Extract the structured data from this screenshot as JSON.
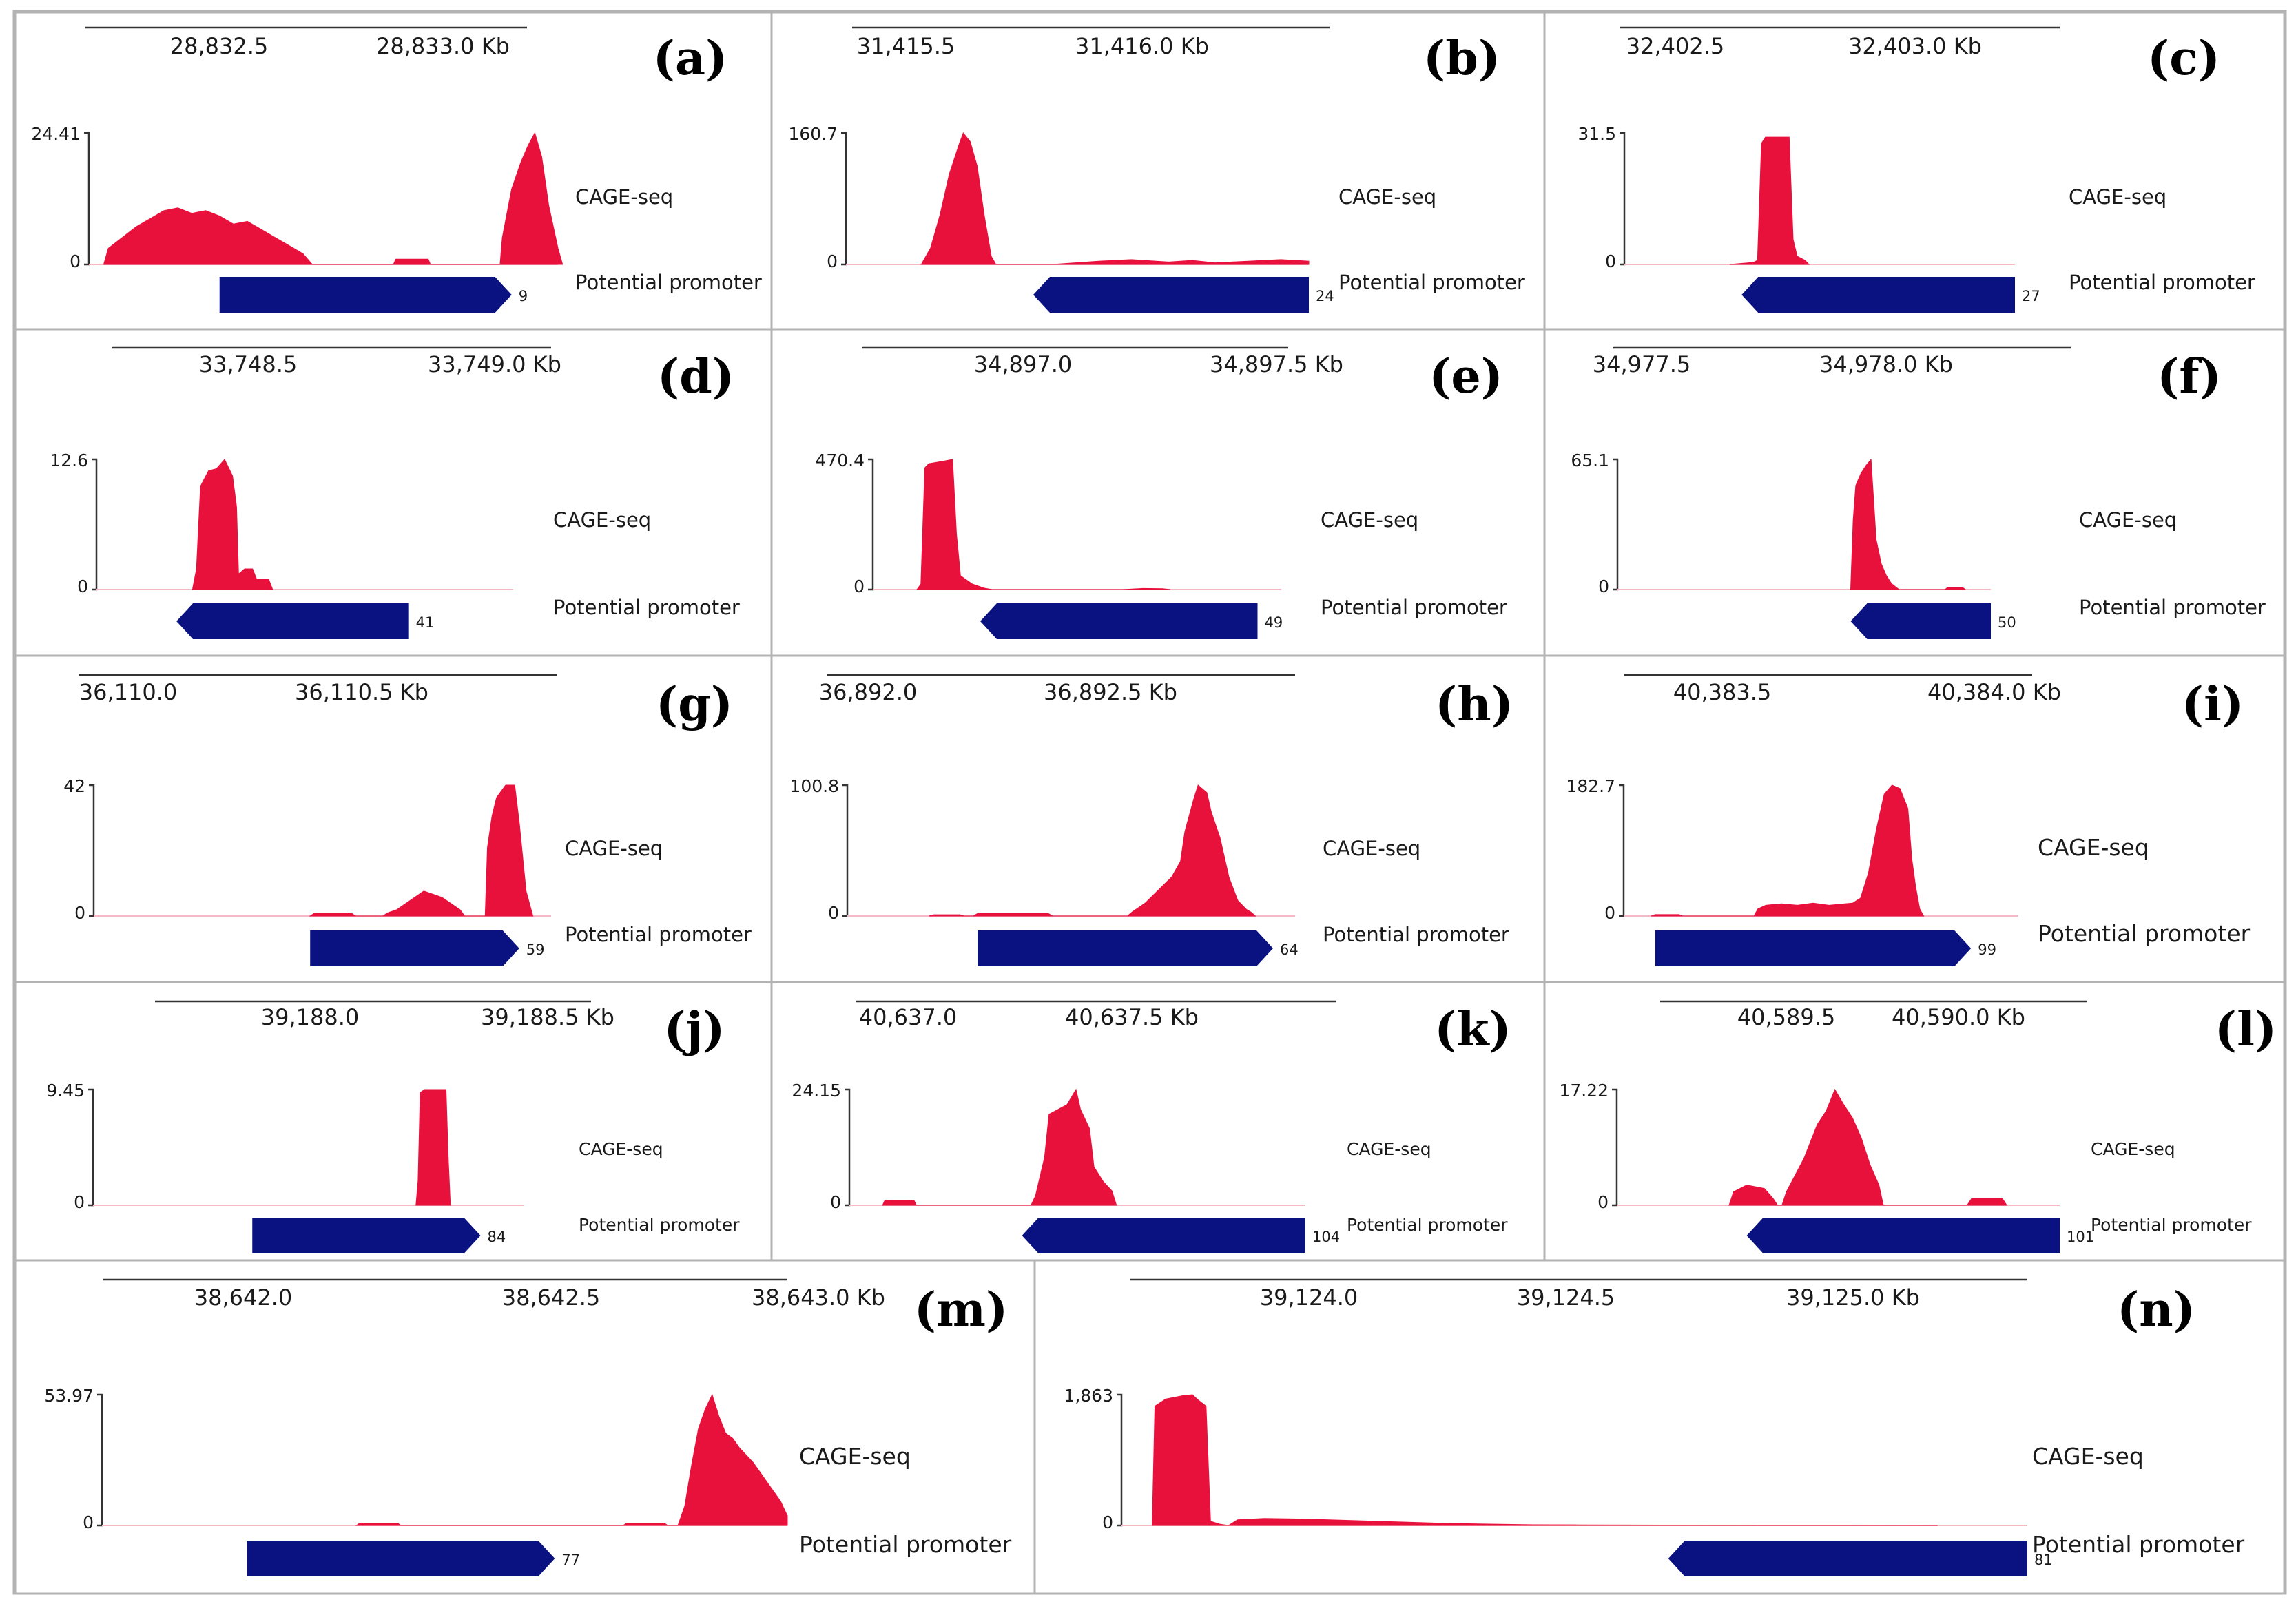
{
  "figure": {
    "track_label": "CAGE-seq",
    "promoter_label": "Potential promoter",
    "axis_unit": "Kb",
    "colors": {
      "signal": "#e8113c",
      "promoter": "#0a1180",
      "axis": "#333333",
      "border": "#b3b3b3"
    }
  },
  "chart_data": [
    {
      "type": "area",
      "panel": "(a)",
      "ticks": [
        "28,832.5",
        "28,833.0 Kb"
      ],
      "ymax_label": "24.41",
      "ymin_label": "0",
      "ylim": [
        0,
        24.41
      ],
      "signal": [
        [
          0.02,
          0
        ],
        [
          0.03,
          3
        ],
        [
          0.06,
          5
        ],
        [
          0.09,
          7
        ],
        [
          0.12,
          8.5
        ],
        [
          0.15,
          10
        ],
        [
          0.18,
          10.5
        ],
        [
          0.21,
          9.5
        ],
        [
          0.24,
          10
        ],
        [
          0.27,
          9
        ],
        [
          0.3,
          7.5
        ],
        [
          0.33,
          8
        ],
        [
          0.36,
          6.5
        ],
        [
          0.39,
          5
        ],
        [
          0.42,
          3.5
        ],
        [
          0.45,
          2
        ],
        [
          0.47,
          0
        ],
        [
          0.645,
          0
        ],
        [
          0.65,
          1
        ],
        [
          0.72,
          1
        ],
        [
          0.725,
          0
        ],
        [
          0.875,
          0
        ],
        [
          0.88,
          5
        ],
        [
          0.9,
          14
        ],
        [
          0.92,
          19
        ],
        [
          0.935,
          22
        ],
        [
          0.95,
          24.41
        ],
        [
          0.965,
          20
        ],
        [
          0.98,
          11
        ],
        [
          1.0,
          3
        ],
        [
          1.01,
          0
        ]
      ],
      "promoter": {
        "start": 0.27,
        "end": 0.9,
        "direction": "right",
        "id": "9"
      }
    },
    {
      "type": "area",
      "panel": "(b)",
      "ticks": [
        "31,415.5",
        "31,416.0 Kb"
      ],
      "ymax_label": "160.7",
      "ymin_label": "0",
      "ylim": [
        0,
        160.7
      ],
      "signal": [
        [
          0.17,
          0
        ],
        [
          0.19,
          20
        ],
        [
          0.21,
          60
        ],
        [
          0.23,
          110
        ],
        [
          0.25,
          145
        ],
        [
          0.26,
          160.7
        ],
        [
          0.275,
          150
        ],
        [
          0.29,
          120
        ],
        [
          0.305,
          60
        ],
        [
          0.32,
          10
        ],
        [
          0.33,
          0
        ],
        [
          0.45,
          0
        ],
        [
          0.5,
          2
        ],
        [
          0.55,
          4
        ],
        [
          0.62,
          6
        ],
        [
          0.7,
          3
        ],
        [
          0.75,
          5
        ],
        [
          0.8,
          2
        ],
        [
          0.87,
          4
        ],
        [
          0.94,
          6
        ],
        [
          1.0,
          4
        ],
        [
          1.0,
          0
        ]
      ],
      "promoter": {
        "start": 0.41,
        "end": 1.0,
        "direction": "left",
        "id": "24"
      }
    },
    {
      "type": "area",
      "panel": "(c)",
      "ticks": [
        "32,402.5",
        "32,403.0 Kb"
      ],
      "ymax_label": "31.5",
      "ymin_label": "0",
      "ylim": [
        0,
        31.5
      ],
      "signal": [
        [
          0.28,
          0
        ],
        [
          0.34,
          0.5
        ],
        [
          0.35,
          1
        ],
        [
          0.36,
          29
        ],
        [
          0.37,
          30.5
        ],
        [
          0.43,
          30.5
        ],
        [
          0.44,
          6
        ],
        [
          0.45,
          2
        ],
        [
          0.47,
          1
        ],
        [
          0.48,
          0
        ]
      ],
      "promoter": {
        "start": 0.31,
        "end": 1.0,
        "direction": "left",
        "id": "27"
      }
    },
    {
      "type": "area",
      "panel": "(d)",
      "ticks": [
        "33,748.5",
        "33,749.0 Kb"
      ],
      "ymax_label": "12.6",
      "ymin_label": "0",
      "ylim": [
        0,
        12.6
      ],
      "signal": [
        [
          0.2,
          0
        ],
        [
          0.21,
          2
        ],
        [
          0.22,
          10
        ],
        [
          0.24,
          11.5
        ],
        [
          0.26,
          11.7
        ],
        [
          0.28,
          12.6
        ],
        [
          0.3,
          11
        ],
        [
          0.31,
          8
        ],
        [
          0.315,
          1.5
        ],
        [
          0.33,
          2
        ],
        [
          0.35,
          2
        ],
        [
          0.36,
          1
        ],
        [
          0.39,
          1
        ],
        [
          0.4,
          0
        ]
      ],
      "promoter": {
        "start": 0.16,
        "end": 0.74,
        "direction": "left",
        "id": "41"
      }
    },
    {
      "type": "area",
      "panel": "(e)",
      "ticks": [
        "34,897.0",
        "34,897.5 Kb"
      ],
      "ymax_label": "470.4",
      "ymin_label": "0",
      "ylim": [
        0,
        470.4
      ],
      "signal": [
        [
          0.08,
          0
        ],
        [
          0.09,
          20
        ],
        [
          0.1,
          440
        ],
        [
          0.11,
          455
        ],
        [
          0.15,
          465
        ],
        [
          0.17,
          470.4
        ],
        [
          0.18,
          200
        ],
        [
          0.19,
          50
        ],
        [
          0.22,
          20
        ],
        [
          0.25,
          5
        ],
        [
          0.27,
          0
        ],
        [
          0.6,
          0
        ],
        [
          0.65,
          4
        ],
        [
          0.7,
          3
        ],
        [
          0.72,
          0
        ]
      ],
      "promoter": {
        "start": 0.24,
        "end": 0.94,
        "direction": "left",
        "id": "49"
      }
    },
    {
      "type": "area",
      "panel": "(f)",
      "ticks": [
        "34,977.5",
        "34,978.0 Kb"
      ],
      "ymax_label": "65.1",
      "ymin_label": "0",
      "ylim": [
        0,
        65.1
      ],
      "signal": [
        [
          0.45,
          0
        ],
        [
          0.46,
          35
        ],
        [
          0.47,
          52
        ],
        [
          0.49,
          58
        ],
        [
          0.51,
          62
        ],
        [
          0.53,
          65.1
        ],
        [
          0.54,
          45
        ],
        [
          0.55,
          25
        ],
        [
          0.57,
          13
        ],
        [
          0.59,
          7
        ],
        [
          0.61,
          3
        ],
        [
          0.63,
          1
        ],
        [
          0.64,
          0
        ],
        [
          0.82,
          0
        ],
        [
          0.83,
          1
        ],
        [
          0.89,
          1
        ],
        [
          0.9,
          0
        ]
      ],
      "promoter": {
        "start": 0.45,
        "end": 1.0,
        "direction": "left",
        "id": "50"
      }
    },
    {
      "type": "area",
      "panel": "(g)",
      "ticks": [
        "36,110.0",
        "36,110.5 Kb"
      ],
      "ymax_label": "42",
      "ymin_label": "0",
      "ylim": [
        0,
        42
      ],
      "signal": [
        [
          0.47,
          0
        ],
        [
          0.48,
          1
        ],
        [
          0.56,
          1
        ],
        [
          0.57,
          0
        ],
        [
          0.63,
          0
        ],
        [
          0.64,
          1
        ],
        [
          0.66,
          2
        ],
        [
          0.68,
          4
        ],
        [
          0.7,
          6
        ],
        [
          0.72,
          8
        ],
        [
          0.74,
          7
        ],
        [
          0.76,
          6
        ],
        [
          0.78,
          4
        ],
        [
          0.8,
          2
        ],
        [
          0.81,
          0
        ],
        [
          0.855,
          0
        ],
        [
          0.86,
          22
        ],
        [
          0.87,
          32
        ],
        [
          0.88,
          38
        ],
        [
          0.9,
          42
        ],
        [
          0.92,
          42
        ],
        [
          0.93,
          30
        ],
        [
          0.945,
          8
        ],
        [
          0.96,
          0
        ]
      ],
      "promoter": {
        "start": 0.47,
        "end": 0.93,
        "direction": "right",
        "id": "59"
      }
    },
    {
      "type": "area",
      "panel": "(h)",
      "ticks": [
        "36,892.0",
        "36,892.5 Kb"
      ],
      "ymax_label": "100.8",
      "ymin_label": "0",
      "ylim": [
        0,
        100.8
      ],
      "signal": [
        [
          0.17,
          0
        ],
        [
          0.18,
          1
        ],
        [
          0.24,
          1
        ],
        [
          0.25,
          0
        ],
        [
          0.27,
          0
        ],
        [
          0.28,
          2
        ],
        [
          0.44,
          2
        ],
        [
          0.45,
          0
        ],
        [
          0.62,
          0
        ],
        [
          0.63,
          3
        ],
        [
          0.66,
          10
        ],
        [
          0.69,
          20
        ],
        [
          0.72,
          30
        ],
        [
          0.74,
          42
        ],
        [
          0.75,
          65
        ],
        [
          0.77,
          90
        ],
        [
          0.78,
          100.8
        ],
        [
          0.8,
          95
        ],
        [
          0.81,
          80
        ],
        [
          0.83,
          60
        ],
        [
          0.85,
          30
        ],
        [
          0.87,
          12
        ],
        [
          0.89,
          5
        ],
        [
          0.9,
          3
        ],
        [
          0.91,
          0
        ]
      ],
      "promoter": {
        "start": 0.28,
        "end": 0.95,
        "direction": "right",
        "id": "64"
      }
    },
    {
      "type": "area",
      "panel": "(i)",
      "ticks": [
        "40,383.5",
        "40,384.0 Kb"
      ],
      "ymax_label": "182.7",
      "ymin_label": "0",
      "ylim": [
        0,
        182.7
      ],
      "signal": [
        [
          0.07,
          0
        ],
        [
          0.08,
          2
        ],
        [
          0.14,
          2
        ],
        [
          0.15,
          0
        ],
        [
          0.33,
          0
        ],
        [
          0.34,
          10
        ],
        [
          0.36,
          15
        ],
        [
          0.4,
          17
        ],
        [
          0.44,
          15
        ],
        [
          0.48,
          18
        ],
        [
          0.52,
          15
        ],
        [
          0.56,
          17
        ],
        [
          0.58,
          18
        ],
        [
          0.6,
          25
        ],
        [
          0.62,
          60
        ],
        [
          0.64,
          120
        ],
        [
          0.66,
          170
        ],
        [
          0.68,
          182.7
        ],
        [
          0.7,
          178
        ],
        [
          0.72,
          150
        ],
        [
          0.73,
          80
        ],
        [
          0.74,
          40
        ],
        [
          0.75,
          10
        ],
        [
          0.76,
          0
        ]
      ],
      "promoter": {
        "start": 0.08,
        "end": 0.88,
        "direction": "right",
        "id": "99"
      }
    },
    {
      "type": "area",
      "panel": "(j)",
      "ticks": [
        "39,188.0",
        "39,188.5 Kb"
      ],
      "ymax_label": "9.45",
      "ymin_label": "0",
      "ylim": [
        0,
        9.45
      ],
      "signal": [
        [
          0.75,
          0
        ],
        [
          0.755,
          2
        ],
        [
          0.76,
          9.2
        ],
        [
          0.77,
          9.45
        ],
        [
          0.82,
          9.45
        ],
        [
          0.825,
          4
        ],
        [
          0.83,
          0
        ]
      ],
      "promoter": {
        "start": 0.37,
        "end": 0.9,
        "direction": "right",
        "id": "84"
      }
    },
    {
      "type": "area",
      "panel": "(k)",
      "ticks": [
        "40,637.0",
        "40,637.5 Kb"
      ],
      "ymax_label": "24.15",
      "ymin_label": "0",
      "ylim": [
        0,
        24.15
      ],
      "signal": [
        [
          0.06,
          0
        ],
        [
          0.065,
          1
        ],
        [
          0.13,
          1
        ],
        [
          0.135,
          0
        ],
        [
          0.39,
          0
        ],
        [
          0.4,
          2
        ],
        [
          0.42,
          10
        ],
        [
          0.43,
          19
        ],
        [
          0.45,
          20
        ],
        [
          0.47,
          21
        ],
        [
          0.49,
          24.15
        ],
        [
          0.5,
          20
        ],
        [
          0.52,
          16
        ],
        [
          0.53,
          8
        ],
        [
          0.55,
          5
        ],
        [
          0.57,
          3
        ],
        [
          0.58,
          0
        ]
      ],
      "promoter": {
        "start": 0.37,
        "end": 1.0,
        "direction": "left",
        "id": "104"
      }
    },
    {
      "type": "area",
      "panel": "(l)",
      "ticks": [
        "40,589.5",
        "40,590.0 Kb"
      ],
      "ymax_label": "17.22",
      "ymin_label": "0",
      "ylim": [
        0,
        17.22
      ],
      "signal": [
        [
          0.25,
          0
        ],
        [
          0.26,
          2
        ],
        [
          0.29,
          3
        ],
        [
          0.33,
          2.5
        ],
        [
          0.35,
          1
        ],
        [
          0.36,
          0
        ],
        [
          0.37,
          0
        ],
        [
          0.38,
          2
        ],
        [
          0.42,
          7
        ],
        [
          0.45,
          12
        ],
        [
          0.47,
          14
        ],
        [
          0.49,
          17.22
        ],
        [
          0.51,
          15
        ],
        [
          0.53,
          13
        ],
        [
          0.55,
          10
        ],
        [
          0.57,
          6
        ],
        [
          0.59,
          3
        ],
        [
          0.6,
          0
        ],
        [
          0.79,
          0
        ],
        [
          0.8,
          1
        ],
        [
          0.87,
          1
        ],
        [
          0.88,
          0
        ]
      ],
      "promoter": {
        "start": 0.29,
        "end": 1.0,
        "direction": "left",
        "id": "101"
      }
    },
    {
      "type": "area",
      "panel": "(m)",
      "ticks": [
        "38,642.0",
        "38,642.5",
        "38,643.0 Kb"
      ],
      "ymax_label": "53.97",
      "ymin_label": "0",
      "ylim": [
        0,
        53.97
      ],
      "signal": [
        [
          0.37,
          0
        ],
        [
          0.375,
          1
        ],
        [
          0.43,
          1
        ],
        [
          0.435,
          0
        ],
        [
          0.76,
          0
        ],
        [
          0.765,
          1
        ],
        [
          0.82,
          1
        ],
        [
          0.825,
          0
        ],
        [
          0.84,
          0
        ],
        [
          0.85,
          8
        ],
        [
          0.86,
          25
        ],
        [
          0.87,
          40
        ],
        [
          0.88,
          48
        ],
        [
          0.89,
          53.97
        ],
        [
          0.9,
          45
        ],
        [
          0.91,
          38
        ],
        [
          0.92,
          36
        ],
        [
          0.93,
          32
        ],
        [
          0.94,
          29
        ],
        [
          0.95,
          26
        ],
        [
          0.96,
          22
        ],
        [
          0.97,
          18
        ],
        [
          0.99,
          10
        ],
        [
          1.0,
          4
        ],
        [
          1.0,
          0
        ]
      ],
      "promoter": {
        "start": 0.21,
        "end": 0.66,
        "direction": "right",
        "id": "77"
      }
    },
    {
      "type": "area",
      "panel": "(n)",
      "ticks": [
        "39,124.0",
        "39,124.5",
        "39,125.0 Kb"
      ],
      "ymax_label": "1,863",
      "ymin_label": "0",
      "ylim": [
        0,
        1863
      ],
      "signal": [
        [
          0.025,
          0
        ],
        [
          0.028,
          1700
        ],
        [
          0.04,
          1800
        ],
        [
          0.06,
          1850
        ],
        [
          0.07,
          1863
        ],
        [
          0.075,
          1800
        ],
        [
          0.08,
          1750
        ],
        [
          0.085,
          1700
        ],
        [
          0.09,
          60
        ],
        [
          0.1,
          20
        ],
        [
          0.11,
          0
        ],
        [
          0.12,
          80
        ],
        [
          0.15,
          100
        ],
        [
          0.2,
          90
        ],
        [
          0.25,
          70
        ],
        [
          0.3,
          50
        ],
        [
          0.35,
          30
        ],
        [
          0.4,
          20
        ],
        [
          0.45,
          10
        ],
        [
          0.5,
          8
        ],
        [
          0.55,
          6
        ],
        [
          0.6,
          5
        ],
        [
          0.7,
          3
        ],
        [
          0.8,
          2
        ],
        [
          0.9,
          0
        ]
      ],
      "promoter": {
        "start": 0.6,
        "end": 1.0,
        "direction": "left",
        "id": "81"
      }
    }
  ]
}
